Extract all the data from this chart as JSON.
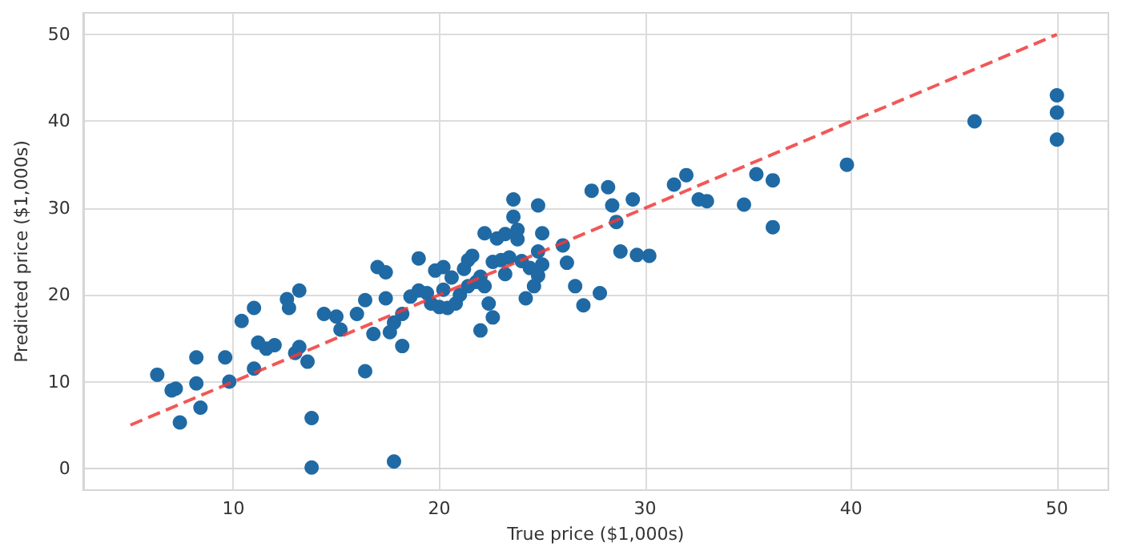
{
  "chart_data": {
    "type": "scatter",
    "xlabel": "True price ($1,000s)",
    "ylabel": "Predicted price ($1,000s)",
    "xlim": [
      2.7,
      52.5
    ],
    "ylim": [
      -2.5,
      52.5
    ],
    "xticks": [
      10,
      20,
      30,
      40,
      50
    ],
    "yticks": [
      0,
      10,
      20,
      30,
      40,
      50
    ],
    "grid": true,
    "marker": "circle",
    "series": [
      {
        "color": "#1f6aa5",
        "x": [
          6.3,
          7,
          7.2,
          7.4,
          8.2,
          8.2,
          8.4,
          9.6,
          9.8,
          10.4,
          11,
          11,
          11.2,
          11.6,
          12,
          12.6,
          12.7,
          13,
          13.2,
          13.2,
          13.6,
          13.8,
          13.8,
          14.4,
          15,
          15.2,
          16,
          16.4,
          16.4,
          16.8,
          17,
          17.4,
          17.4,
          17.6,
          17.8,
          17.8,
          18.2,
          18.2,
          18.6,
          19,
          19,
          19.4,
          19.6,
          19.8,
          20,
          20.2,
          20.2,
          20.4,
          20.6,
          20.8,
          21,
          21.2,
          21.4,
          21.4,
          21.6,
          21.8,
          22,
          22,
          22.2,
          22.2,
          22.4,
          22.6,
          22.6,
          22.8,
          23,
          23.2,
          23.2,
          23.4,
          23.6,
          23.6,
          23.8,
          23.8,
          24,
          24.2,
          24.4,
          24.6,
          24.8,
          24.8,
          24.8,
          25,
          25,
          26,
          26.2,
          26.6,
          27,
          27.4,
          27.8,
          28.2,
          28.4,
          28.6,
          28.8,
          29.4,
          29.6,
          30.2,
          31.4,
          32,
          32.6,
          33,
          34.8,
          35.4,
          36.2,
          36.2,
          39.8,
          46,
          50,
          50,
          50
        ],
        "values": [
          10.8,
          9,
          9.2,
          5.3,
          9.8,
          12.8,
          7,
          12.8,
          10,
          17,
          11.5,
          18.5,
          14.5,
          13.8,
          14.2,
          19.5,
          18.5,
          13.3,
          20.5,
          14,
          12.3,
          5.8,
          0.1,
          17.8,
          17.5,
          16,
          17.8,
          11.2,
          19.4,
          15.5,
          23.2,
          22.6,
          19.6,
          15.7,
          16.8,
          0.8,
          17.8,
          14.1,
          19.8,
          24.2,
          20.5,
          20.2,
          19,
          22.8,
          18.6,
          20.6,
          23.2,
          18.5,
          22,
          19,
          20,
          23,
          24,
          21,
          24.5,
          21.5,
          15.9,
          22.1,
          27.1,
          21,
          19,
          23.8,
          17.4,
          26.5,
          24,
          22.4,
          27,
          24.3,
          31,
          29,
          26.4,
          27.5,
          23.9,
          19.6,
          23.1,
          21,
          22.2,
          30.3,
          25,
          27.1,
          23.5,
          25.7,
          23.7,
          21,
          18.8,
          32,
          20.2,
          32.4,
          30.3,
          28.4,
          25,
          31,
          24.6,
          24.5,
          32.7,
          33.8,
          31,
          30.8,
          30.4,
          33.9,
          33.2,
          27.8,
          35,
          40,
          43,
          41,
          37.9
        ]
      },
      {
        "type": "line",
        "color": "#f03a3a",
        "line_style": "dashed",
        "marker": "none",
        "x": [
          5,
          50
        ],
        "values": [
          5,
          50
        ]
      }
    ]
  }
}
